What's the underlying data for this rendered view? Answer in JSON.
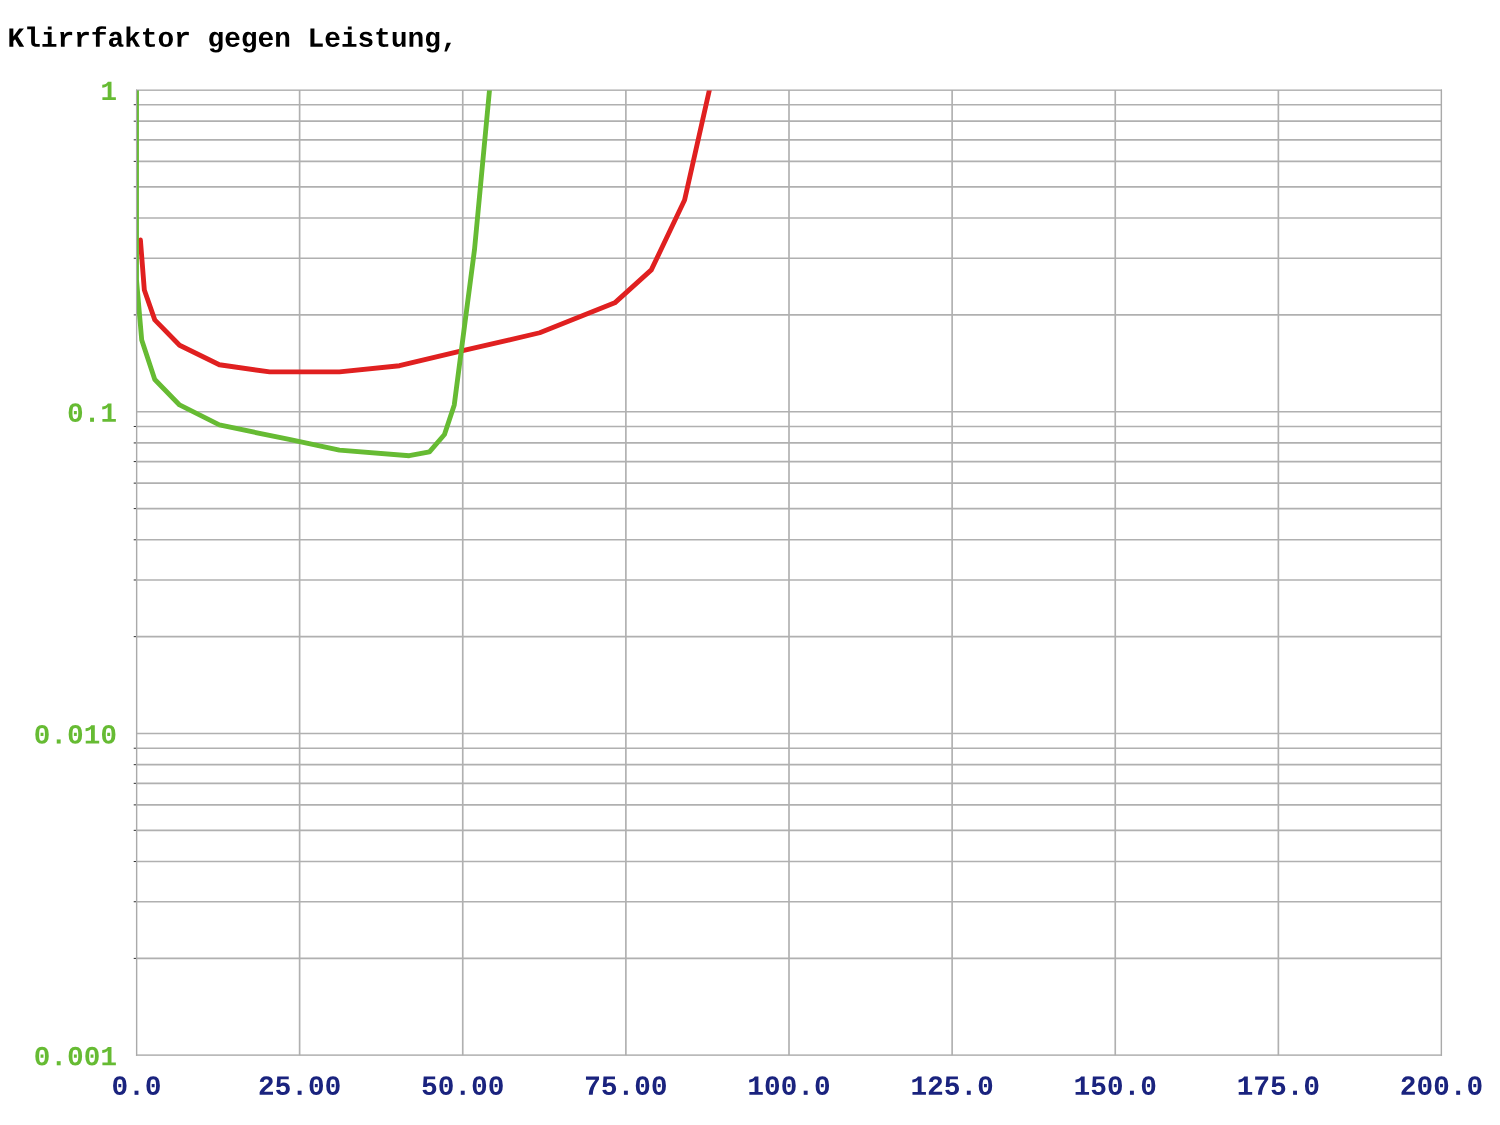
{
  "chart_data": {
    "type": "line",
    "title": "Klirrfaktor gegen Leistung,",
    "series": [
      {
        "color": "#e02020",
        "x": [
          0.6,
          1.2,
          2.8,
          6.6,
          12.7,
          20.4,
          31.1,
          40.3,
          49.5,
          61.8,
          73.3,
          78.9,
          84.0,
          87.8
        ],
        "values": [
          0.342,
          0.239,
          0.193,
          0.161,
          0.14,
          0.133,
          0.133,
          0.139,
          0.154,
          0.176,
          0.218,
          0.276,
          0.455,
          1.0
        ]
      },
      {
        "color": "#66bb33",
        "x": [
          0.0,
          0.0,
          0.8,
          2.8,
          6.6,
          12.7,
          23.4,
          31.1,
          41.8,
          44.9,
          47.2,
          48.7,
          49.8,
          51.8,
          54.1
        ],
        "values": [
          1.0,
          0.257,
          0.167,
          0.126,
          0.105,
          0.091,
          0.082,
          0.076,
          0.073,
          0.075,
          0.085,
          0.105,
          0.156,
          0.319,
          1.0
        ]
      }
    ],
    "log": "y",
    "grid": true,
    "xlim": [
      0,
      200
    ],
    "xticks": [
      {
        "value": 0,
        "label": "0.0"
      },
      {
        "value": 25,
        "label": "25.00"
      },
      {
        "value": 50,
        "label": "50.00"
      },
      {
        "value": 75,
        "label": "75.00"
      },
      {
        "value": 100,
        "label": "100.0"
      },
      {
        "value": 125,
        "label": "125.0"
      },
      {
        "value": 150,
        "label": "150.0"
      },
      {
        "value": 175,
        "label": "175.0"
      },
      {
        "value": 200,
        "label": "200.0"
      }
    ],
    "ylim": [
      0.001,
      1
    ],
    "yticks": [
      {
        "value": 0.001,
        "label": "0.001"
      },
      {
        "value": 0.01,
        "label": "0.010"
      },
      0.1,
      1
    ]
  }
}
